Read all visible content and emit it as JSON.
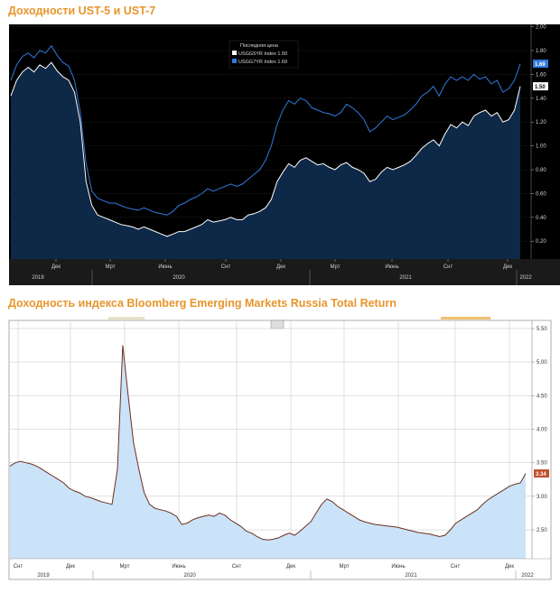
{
  "chart_data": [
    {
      "type": "line",
      "title": "Доходности UST-5 и UST-7",
      "legend": {
        "header": "Последняя цена",
        "position": "top-center",
        "entries": [
          {
            "label": "USGG5YR Index",
            "value": "1.50",
            "color": "#ffffff"
          },
          {
            "label": "USGG7YR Index",
            "value": "1.69",
            "color": "#2f7bdc"
          }
        ]
      },
      "y_ticks": [
        0.2,
        0.4,
        0.6,
        0.8,
        1.0,
        1.2,
        1.4,
        1.6,
        1.8,
        2.0
      ],
      "ylim": [
        0.05,
        2.02
      ],
      "x_ticks": [
        "Дек",
        "Мрт",
        "Июнь",
        "Снт",
        "Дек",
        "Мрт",
        "Июнь",
        "Снт",
        "Дек"
      ],
      "x_years": [
        "2019",
        "2020",
        "2021",
        "2022"
      ],
      "last_values": [
        {
          "value": "1.69",
          "color": "#2f7bdc"
        },
        {
          "value": "1.50",
          "color": "#ffffff"
        }
      ],
      "series": [
        {
          "name": "USGG5YR Index",
          "color": "#ffffff",
          "x": [
            0,
            1,
            2,
            3,
            4,
            5,
            6,
            7,
            8,
            9,
            10,
            11,
            12,
            13,
            14,
            15,
            16,
            17,
            18,
            19,
            20,
            21,
            22,
            23,
            24,
            25,
            26,
            27,
            28,
            29,
            30,
            31,
            32,
            33,
            34,
            35,
            36,
            37,
            38,
            39,
            40,
            41,
            42,
            43,
            44,
            45,
            46,
            47,
            48,
            49,
            50,
            51,
            52,
            53,
            54,
            55,
            56,
            57,
            58,
            59,
            60,
            61,
            62,
            63,
            64,
            65,
            66,
            67,
            68,
            69,
            70,
            71,
            72,
            73,
            74,
            75,
            76,
            77,
            78,
            79,
            80,
            81,
            82,
            83,
            84,
            85,
            86,
            87,
            88
          ],
          "values": [
            1.42,
            1.55,
            1.62,
            1.66,
            1.62,
            1.68,
            1.65,
            1.7,
            1.63,
            1.58,
            1.55,
            1.45,
            1.2,
            0.7,
            0.5,
            0.42,
            0.4,
            0.38,
            0.36,
            0.34,
            0.33,
            0.32,
            0.3,
            0.32,
            0.3,
            0.28,
            0.26,
            0.24,
            0.26,
            0.28,
            0.28,
            0.3,
            0.32,
            0.34,
            0.38,
            0.36,
            0.37,
            0.38,
            0.4,
            0.38,
            0.38,
            0.42,
            0.43,
            0.45,
            0.48,
            0.55,
            0.7,
            0.78,
            0.85,
            0.82,
            0.88,
            0.9,
            0.87,
            0.84,
            0.85,
            0.82,
            0.8,
            0.84,
            0.86,
            0.82,
            0.8,
            0.77,
            0.7,
            0.72,
            0.78,
            0.82,
            0.8,
            0.82,
            0.84,
            0.87,
            0.92,
            0.98,
            1.02,
            1.05,
            1.0,
            1.1,
            1.18,
            1.15,
            1.2,
            1.17,
            1.25,
            1.28,
            1.3,
            1.25,
            1.28,
            1.2,
            1.22,
            1.3,
            1.5
          ]
        },
        {
          "name": "USGG7YR Index",
          "color": "#2f7bdc",
          "x": [
            0,
            1,
            2,
            3,
            4,
            5,
            6,
            7,
            8,
            9,
            10,
            11,
            12,
            13,
            14,
            15,
            16,
            17,
            18,
            19,
            20,
            21,
            22,
            23,
            24,
            25,
            26,
            27,
            28,
            29,
            30,
            31,
            32,
            33,
            34,
            35,
            36,
            37,
            38,
            39,
            40,
            41,
            42,
            43,
            44,
            45,
            46,
            47,
            48,
            49,
            50,
            51,
            52,
            53,
            54,
            55,
            56,
            57,
            58,
            59,
            60,
            61,
            62,
            63,
            64,
            65,
            66,
            67,
            68,
            69,
            70,
            71,
            72,
            73,
            74,
            75,
            76,
            77,
            78,
            79,
            80,
            81,
            82,
            83,
            84,
            85,
            86,
            87,
            88
          ],
          "values": [
            1.55,
            1.68,
            1.75,
            1.78,
            1.74,
            1.8,
            1.78,
            1.84,
            1.76,
            1.7,
            1.67,
            1.55,
            1.28,
            0.85,
            0.62,
            0.56,
            0.54,
            0.52,
            0.52,
            0.5,
            0.48,
            0.47,
            0.46,
            0.48,
            0.46,
            0.44,
            0.43,
            0.42,
            0.45,
            0.5,
            0.52,
            0.55,
            0.57,
            0.6,
            0.64,
            0.62,
            0.64,
            0.66,
            0.68,
            0.66,
            0.68,
            0.72,
            0.76,
            0.8,
            0.88,
            1.0,
            1.18,
            1.3,
            1.38,
            1.35,
            1.4,
            1.38,
            1.32,
            1.3,
            1.28,
            1.27,
            1.25,
            1.28,
            1.35,
            1.32,
            1.28,
            1.22,
            1.12,
            1.15,
            1.2,
            1.25,
            1.22,
            1.24,
            1.26,
            1.3,
            1.35,
            1.42,
            1.45,
            1.5,
            1.42,
            1.52,
            1.58,
            1.55,
            1.58,
            1.55,
            1.6,
            1.56,
            1.58,
            1.52,
            1.55,
            1.45,
            1.48,
            1.55,
            1.69
          ]
        }
      ]
    },
    {
      "type": "area",
      "title": "Доходность индекса Bloomberg Emerging Markets Russia Total Return",
      "y_ticks": [
        2.5,
        3.0,
        3.5,
        4.0,
        4.5,
        5.0,
        5.5
      ],
      "ylim": [
        2.07,
        5.62
      ],
      "x_ticks": [
        "Снт",
        "Дек",
        "Мрт",
        "Июнь",
        "Снт",
        "Дек",
        "Мрт",
        "Июнь",
        "Снт",
        "Дек"
      ],
      "x_years": [
        "2019",
        "2020",
        "2021",
        "2022"
      ],
      "last_values": [
        {
          "value": "3.34",
          "color": "#c0502c"
        }
      ],
      "series": [
        {
          "name": "",
          "color": "#6b2f1f",
          "x": [
            0,
            1,
            2,
            3,
            4,
            5,
            6,
            7,
            8,
            9,
            10,
            11,
            12,
            13,
            14,
            15,
            16,
            17,
            18,
            19,
            20,
            21,
            22,
            23,
            24,
            25,
            26,
            27,
            28,
            29,
            30,
            31,
            32,
            33,
            34,
            35,
            36,
            37,
            38,
            39,
            40,
            41,
            42,
            43,
            44,
            45,
            46,
            47,
            48,
            49,
            50,
            51,
            52,
            53,
            54,
            55,
            56,
            57,
            58,
            59,
            60,
            61,
            62,
            63,
            64,
            65,
            66,
            67,
            68,
            69,
            70,
            71,
            72,
            73,
            74,
            75,
            76,
            77,
            78,
            79,
            80,
            81,
            82,
            83,
            84,
            85,
            86,
            87,
            88,
            89,
            90,
            91,
            92,
            93,
            94,
            95,
            96
          ],
          "values": [
            3.45,
            3.5,
            3.52,
            3.5,
            3.48,
            3.45,
            3.4,
            3.35,
            3.3,
            3.25,
            3.2,
            3.12,
            3.08,
            3.05,
            3.0,
            2.98,
            2.95,
            2.92,
            2.9,
            2.88,
            3.4,
            5.25,
            4.5,
            3.8,
            3.4,
            3.05,
            2.88,
            2.82,
            2.8,
            2.78,
            2.75,
            2.7,
            2.58,
            2.6,
            2.65,
            2.68,
            2.7,
            2.72,
            2.7,
            2.75,
            2.72,
            2.65,
            2.6,
            2.55,
            2.48,
            2.45,
            2.4,
            2.36,
            2.35,
            2.36,
            2.38,
            2.42,
            2.45,
            2.42,
            2.48,
            2.55,
            2.62,
            2.75,
            2.88,
            2.96,
            2.92,
            2.85,
            2.8,
            2.75,
            2.7,
            2.65,
            2.62,
            2.6,
            2.58,
            2.57,
            2.56,
            2.55,
            2.54,
            2.52,
            2.5,
            2.48,
            2.46,
            2.45,
            2.44,
            2.42,
            2.4,
            2.42,
            2.5,
            2.6,
            2.65,
            2.7,
            2.75,
            2.8,
            2.88,
            2.95,
            3.0,
            3.05,
            3.1,
            3.15,
            3.18,
            3.2,
            3.34
          ]
        }
      ]
    }
  ]
}
